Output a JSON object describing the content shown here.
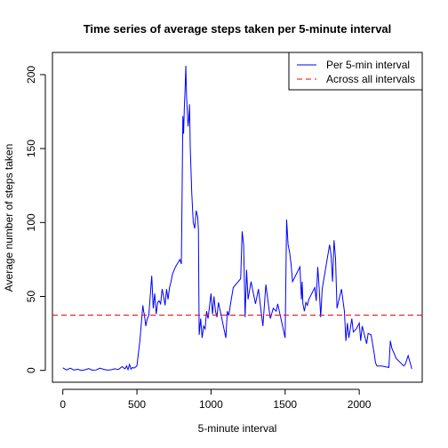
{
  "chart_data": {
    "type": "line",
    "title": "Time series of average steps taken per 5-minute interval",
    "xlabel": "5-minute interval",
    "ylabel": "Average number of steps taken",
    "xlim": [
      -70,
      2425
    ],
    "ylim": [
      -8,
      215
    ],
    "xticks": [
      0,
      500,
      1000,
      1500,
      2000
    ],
    "yticks": [
      0,
      50,
      100,
      150,
      200
    ],
    "legend_position": "top-right",
    "series": [
      {
        "name": "Per 5-min interval",
        "style": "solid",
        "color": "#0000ff",
        "x": [
          0,
          25,
          50,
          75,
          100,
          125,
          150,
          175,
          200,
          225,
          250,
          275,
          300,
          325,
          350,
          375,
          400,
          420,
          430,
          440,
          450,
          460,
          470,
          480,
          500,
          520,
          540,
          545,
          550,
          560,
          570,
          580,
          600,
          610,
          620,
          630,
          640,
          650,
          660,
          670,
          680,
          690,
          700,
          710,
          720,
          730,
          740,
          760,
          790,
          800,
          810,
          815,
          820,
          825,
          830,
          835,
          840,
          845,
          850,
          855,
          860,
          870,
          880,
          890,
          900,
          910,
          915,
          920,
          930,
          940,
          950,
          960,
          970,
          980,
          1000,
          1010,
          1020,
          1030,
          1040,
          1050,
          1100,
          1110,
          1120,
          1130,
          1150,
          1200,
          1210,
          1220,
          1230,
          1240,
          1250,
          1270,
          1300,
          1320,
          1350,
          1370,
          1400,
          1420,
          1440,
          1450,
          1500,
          1510,
          1520,
          1530,
          1540,
          1550,
          1600,
          1610,
          1615,
          1620,
          1630,
          1640,
          1650,
          1660,
          1700,
          1710,
          1720,
          1730,
          1740,
          1750,
          1800,
          1810,
          1820,
          1830,
          1840,
          1850,
          1880,
          1900,
          1910,
          1920,
          1930,
          1950,
          1960,
          1980,
          2000,
          2010,
          2020,
          2040,
          2050,
          2060,
          2080,
          2100,
          2110,
          2120,
          2150,
          2200,
          2210,
          2220,
          2250,
          2300,
          2310,
          2330,
          2355
        ],
        "y": [
          1.7,
          0.3,
          1.5,
          0.2,
          0.8,
          0,
          0.4,
          1.2,
          0.1,
          0.3,
          1.5,
          0.7,
          0.2,
          0.4,
          1.1,
          0.6,
          2.5,
          1,
          3,
          0.5,
          4,
          0.8,
          2,
          1.5,
          3,
          20,
          44,
          40,
          38,
          30,
          35,
          37,
          64,
          42,
          52,
          38,
          46,
          47,
          45,
          55,
          50,
          44,
          55,
          48,
          56,
          60,
          65,
          70,
          75,
          72,
          172,
          160,
          178,
          190,
          206,
          185,
          175,
          165,
          170,
          180,
          150,
          120,
          100,
          96,
          108,
          104,
          95,
          24,
          35,
          22,
          30,
          28,
          40,
          35,
          52,
          38,
          50,
          40,
          36,
          46,
          22,
          40,
          37,
          44,
          56,
          62,
          94,
          85,
          36,
          68,
          48,
          60,
          45,
          55,
          30,
          58,
          35,
          42,
          40,
          45,
          22,
          102,
          85,
          80,
          72,
          60,
          70,
          48,
          60,
          45,
          40,
          46,
          44,
          48,
          56,
          47,
          70,
          55,
          36,
          55,
          85,
          78,
          60,
          88,
          76,
          42,
          55,
          40,
          20,
          32,
          22,
          35,
          26,
          28,
          32,
          20,
          30,
          22,
          18,
          25,
          24,
          12,
          5,
          3,
          3,
          2,
          20,
          15,
          8,
          3,
          4,
          10,
          1
        ]
      },
      {
        "name": "Across all intervals",
        "style": "dashed",
        "color": "#ff0000",
        "y_constant": 37.38
      }
    ]
  }
}
